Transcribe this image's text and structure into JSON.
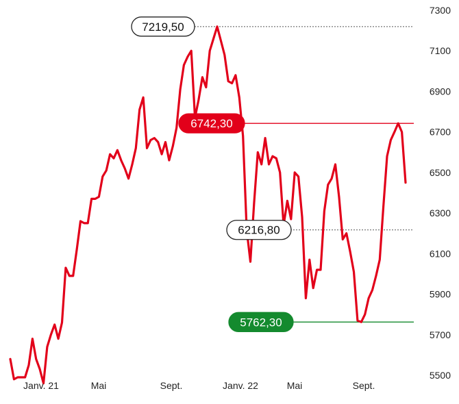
{
  "chart_data": {
    "type": "line",
    "title": "",
    "xlabel": "",
    "ylabel": "",
    "x_tick_labels": [
      "Janv. 21",
      "Mai",
      "Sept.",
      "Janv. 22",
      "Mai",
      "Sept."
    ],
    "y_ticks": [
      7300,
      7100,
      6900,
      6700,
      6500,
      6300,
      6100,
      5900,
      5700,
      5500
    ],
    "ylim": [
      5460,
      7320
    ],
    "grid": false,
    "series": [
      {
        "color": "#e2001a",
        "values": [
          5580,
          5480,
          5490,
          5490,
          5490,
          5550,
          5680,
          5580,
          5530,
          5460,
          5640,
          5700,
          5750,
          5680,
          5760,
          6030,
          5990,
          5990,
          6120,
          6260,
          6250,
          6250,
          6370,
          6370,
          6380,
          6480,
          6510,
          6590,
          6570,
          6610,
          6560,
          6520,
          6470,
          6540,
          6620,
          6810,
          6870,
          6620,
          6660,
          6670,
          6650,
          6590,
          6650,
          6560,
          6630,
          6720,
          6910,
          7030,
          7070,
          7100,
          6770,
          6860,
          6970,
          6920,
          7100,
          7160,
          7219.5,
          7150,
          7080,
          6950,
          6940,
          6980,
          6870,
          6680,
          6216.8,
          6060,
          6350,
          6600,
          6540,
          6670,
          6540,
          6580,
          6570,
          6500,
          6240,
          6360,
          6270,
          6500,
          6480,
          6280,
          5880,
          6070,
          5930,
          6020,
          6020,
          6310,
          6440,
          6470,
          6540,
          6380,
          6170,
          6200,
          6110,
          6010,
          5770,
          5762.3,
          5800,
          5880,
          5920,
          5990,
          6070,
          6330,
          6580,
          6660,
          6700,
          6742.3,
          6700,
          6450
        ]
      }
    ],
    "annotations": [
      {
        "label": "7219,50",
        "value": 7219.5,
        "style": "outline",
        "color": "#000000"
      },
      {
        "label": "6742,30",
        "value": 6742.3,
        "style": "filled",
        "color": "#e2001a"
      },
      {
        "label": "6216,80",
        "value": 6216.8,
        "style": "outline",
        "color": "#000000"
      },
      {
        "label": "5762,30",
        "value": 5762.3,
        "style": "filled",
        "color": "#148a2e"
      }
    ]
  }
}
